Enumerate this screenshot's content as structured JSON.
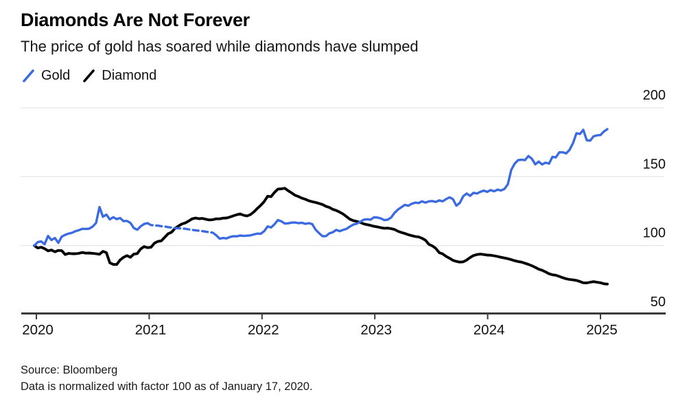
{
  "header": {
    "title": "Diamonds Are Not Forever",
    "subtitle": "The price of gold has soared while diamonds have slumped"
  },
  "legend": {
    "items": [
      {
        "label": "Gold",
        "color": "#3B6AE1"
      },
      {
        "label": "Diamond",
        "color": "#000000"
      }
    ]
  },
  "footer": {
    "source": "Source: Bloomberg",
    "note": "Data is normalized with factor 100 as of January 17, 2020."
  },
  "colors": {
    "gold_line": "#3B6AE1",
    "diamond_line": "#000000",
    "gridline": "#e8e8e8",
    "axis": "#3a3a3a",
    "tick_label": "#111111"
  },
  "chart_data": {
    "type": "line",
    "title": "Diamonds Are Not Forever",
    "subtitle": "The price of gold has soared while diamonds have slumped",
    "normalization_note": "Data is normalized with factor 100 as of January 17, 2020.",
    "source": "Bloomberg",
    "legend_position": "top-left",
    "grid": true,
    "x_axis": {
      "unit": "year",
      "tick_values": [
        2020,
        2021,
        2022,
        2023,
        2024,
        2025
      ],
      "tick_labels": [
        "2020",
        "2021",
        "2022",
        "2023",
        "2024",
        "2025"
      ],
      "range_years": [
        2019.87,
        2025.58
      ]
    },
    "y_axis": {
      "tick_values": [
        200,
        150,
        100,
        50
      ],
      "tick_labels": [
        "200",
        "150",
        "100",
        "50"
      ],
      "range": [
        50,
        200
      ],
      "labels_position": "right"
    },
    "series": [
      {
        "name": "Gold",
        "color": "#3B6AE1",
        "style": "solid",
        "dashed_segment_years": [
          2021.0,
          2021.6
        ],
        "x_start_year": 2019.982,
        "x_end_year": 2025.061,
        "values": [
          100,
          102.5,
          103,
          101,
          107,
          104,
          105.5,
          102,
          106.5,
          107.8,
          108.7,
          109.3,
          110.5,
          111.2,
          112.2,
          112.1,
          112.3,
          113.8,
          116.5,
          128,
          120.9,
          122.5,
          119,
          120.6,
          119.2,
          120,
          117.7,
          117.9,
          116.5,
          112.8,
          111.5,
          114,
          115.7,
          116.3,
          114.9,
          114.7,
          114.5,
          114.1,
          113.9,
          113.4,
          113.1,
          112.8,
          112.6,
          112.5,
          112.2,
          111.8,
          111.4,
          111.1,
          110.8,
          110.5,
          110.1,
          109.7,
          109.4,
          107.5,
          105,
          105.5,
          105.2,
          106.2,
          106.8,
          106.7,
          107.3,
          107,
          107.2,
          107.4,
          108.1,
          108.7,
          108.6,
          110.5,
          113.9,
          113.2,
          115.5,
          118.5,
          117.6,
          116,
          116.2,
          116.7,
          116.8,
          116.3,
          116.6,
          115.8,
          116.3,
          115.6,
          111.5,
          109,
          106.8,
          106.9,
          108.9,
          109.7,
          111.4,
          110.5,
          111.4,
          112.2,
          113.9,
          115.3,
          116,
          117.2,
          118.8,
          119.1,
          118.8,
          120.5,
          120.4,
          119.7,
          118.5,
          118.8,
          120.4,
          123.8,
          126.2,
          127.9,
          129.6,
          128.9,
          130.4,
          131.2,
          130.9,
          132.1,
          131.2,
          132.1,
          132.3,
          131.7,
          132.8,
          132.1,
          133.7,
          135,
          133.7,
          129,
          131,
          135.8,
          137.8,
          136.1,
          138.3,
          137.8,
          139,
          139.9,
          139,
          140.3,
          139.4,
          140.6,
          140,
          141.1,
          144.5,
          155,
          159.5,
          162,
          162.3,
          162,
          165,
          163,
          159,
          161,
          158.9,
          160.2,
          159.5,
          164.4,
          164,
          167.7,
          167.7,
          166.9,
          169.5,
          174.4,
          181.5,
          181,
          184,
          176.5,
          176.2,
          179.3,
          180,
          180.2,
          182.8,
          184.5
        ]
      },
      {
        "name": "Diamond",
        "color": "#000000",
        "style": "solid",
        "x_start_year": 2019.982,
        "x_end_year": 2025.061,
        "values": [
          100,
          98.3,
          98.8,
          97.8,
          96.2,
          96.8,
          95.5,
          96.5,
          96.3,
          93.5,
          94.4,
          94.1,
          94.1,
          94.4,
          95,
          94.5,
          94.6,
          94.4,
          94.1,
          93.7,
          95.8,
          94.9,
          87.5,
          86.4,
          86.3,
          89.5,
          91.5,
          92.7,
          91.5,
          93.8,
          94.2,
          97.6,
          99.3,
          98.5,
          98.8,
          101.8,
          103,
          103.4,
          106,
          108.6,
          109.7,
          112.5,
          114.2,
          115.7,
          116.5,
          117.8,
          119.4,
          120,
          119.5,
          119.7,
          119.1,
          118.6,
          118.8,
          119.4,
          119.4,
          119.9,
          120,
          120.7,
          121.6,
          122.4,
          123,
          122,
          121.5,
          122.5,
          124.5,
          127,
          129.3,
          132,
          135.8,
          135.5,
          138.6,
          141,
          141.2,
          141.6,
          139.8,
          138.2,
          136.5,
          135.6,
          134.4,
          133.6,
          132.5,
          131.9,
          131.3,
          130.6,
          129.8,
          128.5,
          127.7,
          126.3,
          125.5,
          124.3,
          122.9,
          121,
          119.1,
          118.1,
          117.5,
          116.8,
          115.8,
          115.2,
          114.7,
          114,
          113.6,
          113,
          112.6,
          112.7,
          112.3,
          111.7,
          110.4,
          109.5,
          108.8,
          107.9,
          107.2,
          106.6,
          106.3,
          105.3,
          103.9,
          100.9,
          99.8,
          98,
          94.9,
          94,
          92.2,
          90.8,
          89.3,
          88.5,
          88,
          88.2,
          89.5,
          91.3,
          92.8,
          93.5,
          93.8,
          93.5,
          93.1,
          93,
          92.6,
          92.1,
          91.5,
          91,
          90.5,
          89.8,
          89,
          88.4,
          88,
          87.2,
          86.4,
          85.4,
          84.2,
          82.9,
          82.1,
          80.9,
          79.6,
          78.8,
          78.5,
          77.6,
          76.7,
          75.9,
          75.4,
          75.1,
          74.7,
          73.9,
          73,
          72.9,
          73.4,
          73.8,
          73.4,
          73,
          72.3,
          72.1
        ]
      }
    ]
  }
}
